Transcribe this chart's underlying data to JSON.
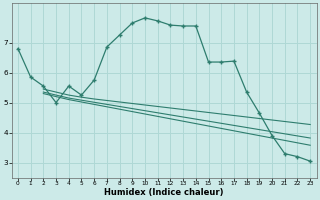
{
  "xlabel": "Humidex (Indice chaleur)",
  "ylabel": "",
  "background_color": "#cceae8",
  "grid_color": "#afd8d5",
  "line_color": "#2e7d6e",
  "xlim": [
    -0.5,
    23.5
  ],
  "ylim": [
    2.5,
    8.3
  ],
  "yticks": [
    3,
    4,
    5,
    6,
    7
  ],
  "xticks": [
    0,
    1,
    2,
    3,
    4,
    5,
    6,
    7,
    8,
    9,
    10,
    11,
    12,
    13,
    14,
    15,
    16,
    17,
    18,
    19,
    20,
    21,
    22,
    23
  ],
  "line1_x": [
    0,
    1,
    2,
    3,
    4,
    5,
    6,
    7,
    8,
    9,
    10,
    11,
    12,
    13,
    14,
    15,
    16,
    17,
    18,
    19,
    20,
    21,
    22,
    23
  ],
  "line1_y": [
    6.8,
    5.85,
    5.55,
    5.0,
    5.55,
    5.25,
    5.75,
    6.85,
    7.25,
    7.65,
    7.82,
    7.72,
    7.58,
    7.55,
    7.55,
    6.35,
    6.35,
    6.38,
    5.35,
    4.65,
    3.9,
    3.3,
    3.2,
    3.05
  ],
  "line2_x": [
    2,
    3,
    4,
    5,
    6,
    7,
    8,
    9,
    10,
    11,
    12,
    13,
    14,
    15,
    16,
    17,
    18,
    19,
    20,
    21,
    22,
    23
  ],
  "line2_y": [
    5.45,
    5.35,
    5.25,
    5.18,
    5.12,
    5.07,
    5.02,
    4.97,
    4.92,
    4.87,
    4.82,
    4.77,
    4.72,
    4.67,
    4.62,
    4.57,
    4.52,
    4.47,
    4.42,
    4.37,
    4.32,
    4.27
  ],
  "line3_x": [
    2,
    3,
    4,
    5,
    6,
    7,
    8,
    9,
    10,
    11,
    12,
    13,
    14,
    15,
    16,
    17,
    18,
    19,
    20,
    21,
    22,
    23
  ],
  "line3_y": [
    5.35,
    5.25,
    5.15,
    5.08,
    5.01,
    4.94,
    4.87,
    4.8,
    4.73,
    4.66,
    4.59,
    4.52,
    4.45,
    4.38,
    4.31,
    4.24,
    4.17,
    4.1,
    4.03,
    3.96,
    3.89,
    3.82
  ],
  "line4_x": [
    2,
    3,
    4,
    5,
    6,
    7,
    8,
    9,
    10,
    11,
    12,
    13,
    14,
    15,
    16,
    17,
    18,
    19,
    20,
    21,
    22,
    23
  ],
  "line4_y": [
    5.3,
    5.2,
    5.1,
    5.02,
    4.94,
    4.86,
    4.78,
    4.7,
    4.62,
    4.54,
    4.46,
    4.38,
    4.3,
    4.22,
    4.14,
    4.06,
    3.98,
    3.9,
    3.82,
    3.74,
    3.66,
    3.58
  ]
}
